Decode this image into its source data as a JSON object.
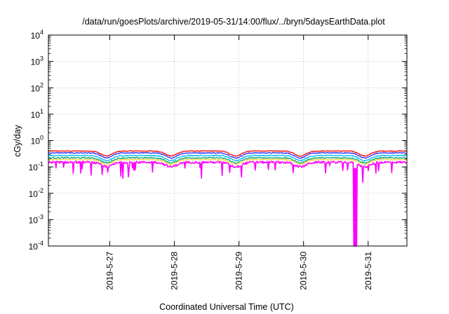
{
  "chart_data": {
    "type": "line",
    "title": "/data/run/goesPlots/archive/2019-05-31/14:00/flux/../bryn/5daysEarthData.plot",
    "xlabel": "Coordinated Universal Time (UTC)",
    "ylabel": "cGy/day",
    "y_scale": "log",
    "ylim": [
      0.0001,
      10000
    ],
    "y_ticks": [
      {
        "value": 0.0001,
        "base": "10",
        "exp": "-4"
      },
      {
        "value": 0.001,
        "base": "10",
        "exp": "-3"
      },
      {
        "value": 0.01,
        "base": "10",
        "exp": "-2"
      },
      {
        "value": 0.1,
        "base": "10",
        "exp": "-1"
      },
      {
        "value": 1,
        "base": "10",
        "exp": "0"
      },
      {
        "value": 10,
        "base": "10",
        "exp": "1"
      },
      {
        "value": 100,
        "base": "10",
        "exp": "2"
      },
      {
        "value": 1000,
        "base": "10",
        "exp": "3"
      },
      {
        "value": 10000,
        "base": "10",
        "exp": "4"
      }
    ],
    "x_ticks": [
      "2019-5-27",
      "2019-5-28",
      "2019-5-29",
      "2019-5-30",
      "2019-5-31"
    ],
    "xlim_days": [
      26.05,
      31.6
    ],
    "grid": true,
    "legend": "none",
    "colors": [
      "#ff0000",
      "#2a2aff",
      "#00b7ff",
      "#00a86b",
      "#ffd24d",
      "#ff00ff"
    ],
    "series": [
      {
        "color": "#ff0000",
        "level": 0.4,
        "dip": 0.65,
        "amp": 0.035
      },
      {
        "color": "#2a2aff",
        "level": 0.34,
        "dip": 0.64,
        "amp": 0.04
      },
      {
        "color": "#00b7ff",
        "level": 0.27,
        "dip": 0.64,
        "amp": 0.045
      },
      {
        "color": "#00a86b",
        "level": 0.22,
        "dip": 0.65,
        "amp": 0.05
      },
      {
        "color": "#ffd24d",
        "level": 0.19,
        "dip": 0.66,
        "amp": 0.055
      },
      {
        "color": "#ff00ff",
        "level": 0.15,
        "dip": 0.67,
        "amp": 0.09
      }
    ],
    "dropout": {
      "from_day": 30.77,
      "to_day": 30.83,
      "value": 0.0001
    }
  }
}
